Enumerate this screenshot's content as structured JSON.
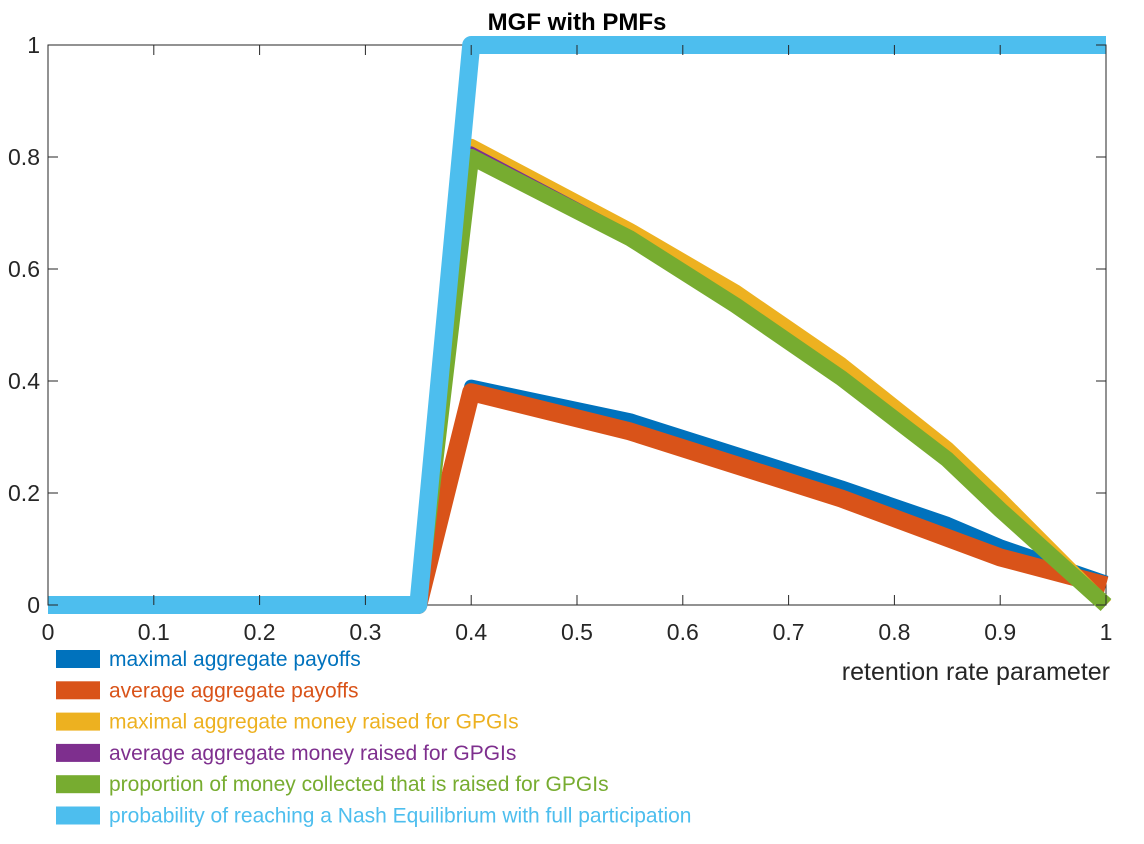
{
  "chart_data": {
    "type": "line",
    "title": "MGF with PMFs",
    "xlabel": "retention rate parameter",
    "ylabel": "",
    "xlim": [
      0,
      1
    ],
    "ylim": [
      0,
      1
    ],
    "xticks": [
      0,
      0.1,
      0.2,
      0.3,
      0.4,
      0.5,
      0.6,
      0.7,
      0.8,
      0.9,
      1
    ],
    "xtick_labels": [
      "0",
      "0.1",
      "0.2",
      "0.3",
      "0.4",
      "0.5",
      "0.6",
      "0.7",
      "0.8",
      "0.9",
      "1"
    ],
    "yticks": [
      0,
      0.2,
      0.4,
      0.6,
      0.8,
      1
    ],
    "ytick_labels": [
      "0",
      "0.2",
      "0.4",
      "0.6",
      "0.8",
      "1"
    ],
    "grid": false,
    "legend_position": "bottom-left, outside axes",
    "x": [
      0,
      0.35,
      0.4,
      0.55,
      0.65,
      0.75,
      0.85,
      0.9,
      1.0
    ],
    "series": [
      {
        "name": "maximal aggregate payoffs",
        "color": "#0072BD",
        "values": [
          0,
          0,
          0.39,
          0.33,
          0.27,
          0.21,
          0.145,
          0.105,
          0.04
        ]
      },
      {
        "name": "average aggregate payoffs",
        "color": "#D95319",
        "values": [
          0,
          0,
          0.38,
          0.31,
          0.25,
          0.19,
          0.12,
          0.085,
          0.035
        ]
      },
      {
        "name": "maximal aggregate money raised for GPGIs",
        "color": "#EDB120",
        "values": [
          0,
          0,
          0.82,
          0.67,
          0.56,
          0.43,
          0.28,
          0.19,
          0.0
        ]
      },
      {
        "name": "average aggregate money raised for GPGIs",
        "color": "#7E2F8E",
        "values": [
          0,
          0,
          0.81,
          0.66,
          0.54,
          0.41,
          0.26,
          0.17,
          0.0
        ]
      },
      {
        "name": "proportion of money collected that is raised for GPGIs",
        "color": "#77AC30",
        "values": [
          0,
          0,
          0.8,
          0.655,
          0.535,
          0.405,
          0.26,
          0.17,
          0.0
        ]
      },
      {
        "name": "probability of reaching a Nash Equilibrium with full participation",
        "color": "#4DBEEE",
        "values": [
          0,
          0,
          1,
          1,
          1,
          1,
          1,
          1,
          1
        ]
      }
    ],
    "line_widths": [
      14,
      18,
      14,
      10,
      16,
      18
    ]
  }
}
